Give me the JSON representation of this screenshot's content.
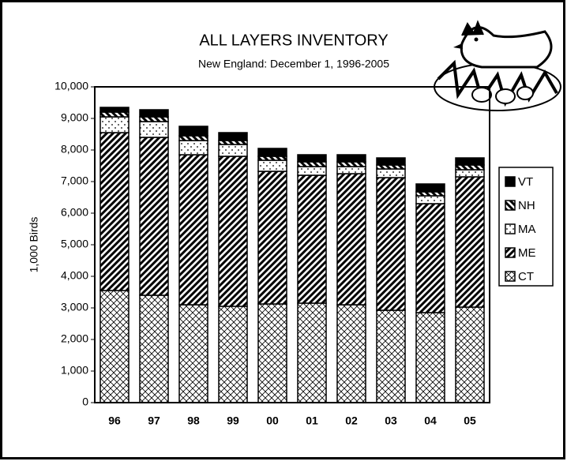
{
  "chart_data": {
    "type": "stacked-bar",
    "title": "ALL LAYERS INVENTORY",
    "subtitle": "New England: December 1, 1996-2005",
    "y_label": "1,000 Birds",
    "categories": [
      "96",
      "97",
      "98",
      "99",
      "00",
      "01",
      "02",
      "03",
      "04",
      "05"
    ],
    "series": [
      {
        "name": "CT",
        "color": "#000000",
        "values": [
          3550,
          3400,
          3100,
          3050,
          3125,
          3150,
          3100,
          2925,
          2850,
          3025
        ]
      },
      {
        "name": "ME",
        "color": "#000000",
        "values": [
          5000,
          5000,
          4750,
          4750,
          4200,
          4050,
          4150,
          4200,
          3450,
          4125
        ]
      },
      {
        "name": "MA",
        "color": "#000000",
        "values": [
          500,
          500,
          450,
          375,
          350,
          275,
          225,
          275,
          250,
          225
        ]
      },
      {
        "name": "NH",
        "color": "#000000",
        "values": [
          150,
          150,
          150,
          125,
          125,
          150,
          150,
          125,
          125,
          150
        ]
      },
      {
        "name": "VT",
        "color": "#000000",
        "values": [
          150,
          225,
          300,
          250,
          250,
          225,
          225,
          225,
          250,
          225
        ]
      }
    ],
    "ylim": [
      0,
      10000
    ],
    "yticks": [
      0,
      {
        "value": 1000,
        "label": "1,000"
      },
      {
        "value": 2000,
        "label": "2,000"
      },
      {
        "value": 3000,
        "label": "3,000"
      },
      {
        "value": 4000,
        "label": "4,000"
      },
      {
        "value": 5000,
        "label": "5,000"
      },
      {
        "value": 6000,
        "label": "6,000"
      },
      {
        "value": 7000,
        "label": "7,000"
      },
      {
        "value": 8000,
        "label": "8,000"
      },
      {
        "value": 9000,
        "label": "9,000"
      },
      {
        "value": 10000,
        "label": "10,000"
      }
    ],
    "legend": "right"
  }
}
